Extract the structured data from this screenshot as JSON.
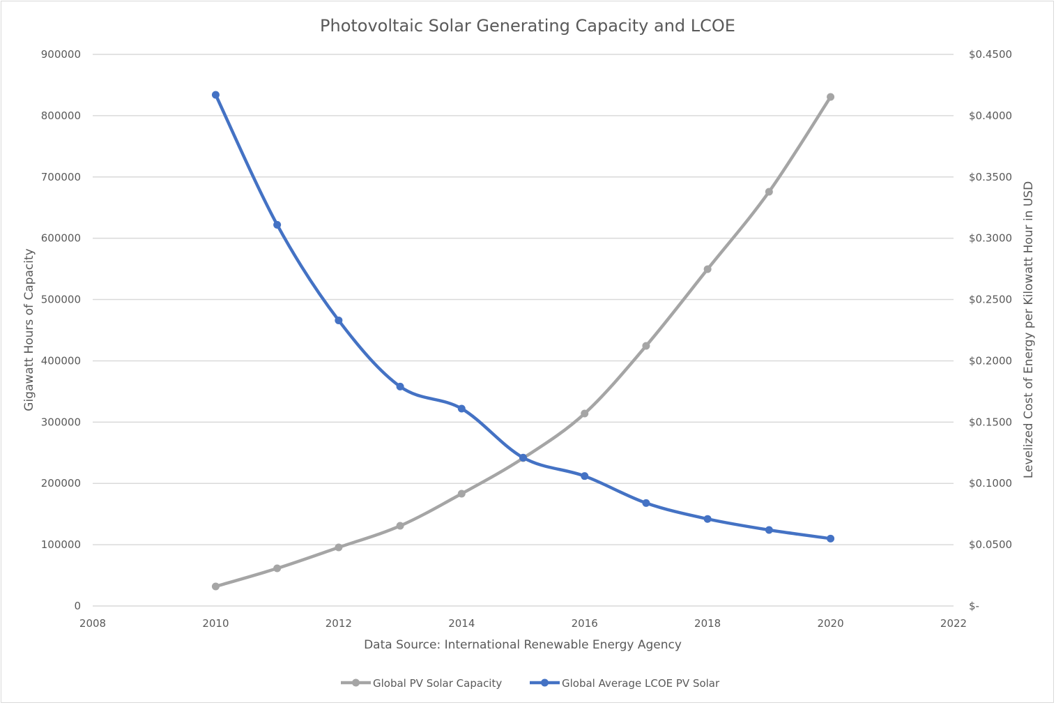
{
  "chart_data": {
    "type": "line",
    "title": "Photovoltaic Solar Generating Capacity and LCOE",
    "xlabel": "Data Source: International Renewable Energy Agency",
    "ylabel": "Gigawatt Hours of Capacity",
    "y2label": "Levelized Cost of Energy per Kilowatt Hour in USD",
    "xlim": [
      2008,
      2022
    ],
    "ylim": [
      0,
      900000
    ],
    "y2lim": [
      0,
      0.45
    ],
    "x_ticks": [
      "2008",
      "2010",
      "2012",
      "2014",
      "2016",
      "2018",
      "2020",
      "2022"
    ],
    "x_tick_values": [
      2008,
      2010,
      2012,
      2014,
      2016,
      2018,
      2020,
      2022
    ],
    "y_ticks": [
      "0",
      "100000",
      "200000",
      "300000",
      "400000",
      "500000",
      "600000",
      "700000",
      "800000",
      "900000"
    ],
    "y_tick_values": [
      0,
      100000,
      200000,
      300000,
      400000,
      500000,
      600000,
      700000,
      800000,
      900000
    ],
    "y2_ticks": [
      "$-",
      "$0.0500",
      "$0.1000",
      "$0.1500",
      "$0.2000",
      "$0.2500",
      "$0.3000",
      "$0.3500",
      "$0.4000",
      "$0.4500"
    ],
    "y2_tick_values": [
      0,
      0.05,
      0.1,
      0.15,
      0.2,
      0.25,
      0.3,
      0.35,
      0.4,
      0.45
    ],
    "grid": true,
    "legend_position": "bottom",
    "x": [
      2010,
      2011,
      2012,
      2013,
      2014,
      2015,
      2016,
      2017,
      2018,
      2019,
      2020
    ],
    "series": [
      {
        "name": "Global PV Solar Capacity",
        "axis": "left",
        "color": "#a5a5a5",
        "values": [
          31900,
          61400,
          95600,
          130800,
          183200,
          241200,
          314000,
          424400,
          549600,
          675900,
          830600
        ]
      },
      {
        "name": "Global Average LCOE PV Solar",
        "axis": "right",
        "color": "#4472c4",
        "values": [
          0.417,
          0.311,
          0.233,
          0.179,
          0.161,
          0.121,
          0.106,
          0.084,
          0.071,
          0.062,
          0.055
        ]
      }
    ]
  }
}
